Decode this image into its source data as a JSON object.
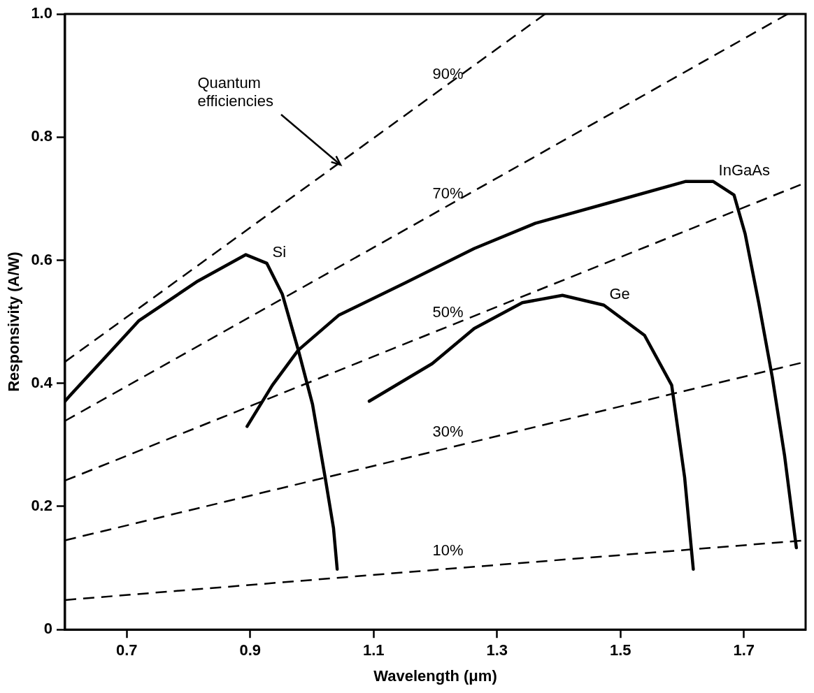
{
  "chart_data": {
    "type": "line",
    "xlabel": "Wavelength (μm)",
    "ylabel": "Responsivity (A/W)",
    "xlim": [
      0.6,
      1.8
    ],
    "ylim": [
      0,
      1
    ],
    "xticks": [
      0.7,
      0.9,
      1.1,
      1.3,
      1.5,
      1.7
    ],
    "yticks": [
      {
        "value": 0,
        "label": "0"
      },
      0.2,
      0.4,
      0.6,
      0.8,
      {
        "value": 1,
        "label": "1.0"
      }
    ],
    "grid": false,
    "legend": false,
    "marker": "none",
    "annotations": [
      {
        "text": "Quantum efficiencies",
        "x": 1.047,
        "y": 0.755
      }
    ],
    "series": [
      {
        "name": "90%",
        "color": "#000000",
        "line_style": "dashed",
        "x": [
          0.6,
          1.2,
          1.378
        ],
        "values": [
          0.435,
          0.871,
          1.0
        ]
      },
      {
        "name": "70%",
        "color": "#000000",
        "line_style": "dashed",
        "x": [
          0.6,
          1.2,
          1.771
        ],
        "values": [
          0.339,
          0.677,
          1.0
        ]
      },
      {
        "name": "50%",
        "color": "#000000",
        "line_style": "dashed",
        "x": [
          0.6,
          1.2,
          1.8
        ],
        "values": [
          0.242,
          0.484,
          0.726
        ]
      },
      {
        "name": "30%",
        "color": "#000000",
        "line_style": "dashed",
        "x": [
          0.6,
          1.2,
          1.8
        ],
        "values": [
          0.145,
          0.29,
          0.435
        ]
      },
      {
        "name": "10%",
        "color": "#000000",
        "line_style": "dashed",
        "x": [
          0.6,
          1.2,
          1.8
        ],
        "values": [
          0.048,
          0.097,
          0.145
        ]
      },
      {
        "name": "Si",
        "color": "#000000",
        "line_style": "solid",
        "x": [
          0.6,
          0.608,
          0.72,
          0.815,
          0.893,
          0.927,
          0.952,
          0.978,
          1.001,
          1.022,
          1.035,
          1.041
        ],
        "values": [
          0.371,
          0.38,
          0.502,
          0.566,
          0.609,
          0.595,
          0.545,
          0.454,
          0.366,
          0.244,
          0.165,
          0.098
        ]
      },
      {
        "name": "InGaAs",
        "color": "#000000",
        "line_style": "solid",
        "x": [
          0.895,
          0.936,
          0.978,
          1.044,
          1.151,
          1.263,
          1.362,
          1.495,
          1.606,
          1.65,
          1.684,
          1.702,
          1.724,
          1.746,
          1.766,
          1.785
        ],
        "values": [
          0.33,
          0.397,
          0.454,
          0.511,
          0.563,
          0.619,
          0.66,
          0.697,
          0.728,
          0.728,
          0.706,
          0.643,
          0.531,
          0.41,
          0.282,
          0.133
        ]
      },
      {
        "name": "Ge",
        "color": "#000000",
        "line_style": "solid",
        "x": [
          1.093,
          1.195,
          1.263,
          1.341,
          1.406,
          1.473,
          1.539,
          1.583,
          1.604,
          1.618
        ],
        "values": [
          0.371,
          0.432,
          0.489,
          0.531,
          0.543,
          0.527,
          0.478,
          0.397,
          0.247,
          0.098
        ]
      }
    ]
  }
}
